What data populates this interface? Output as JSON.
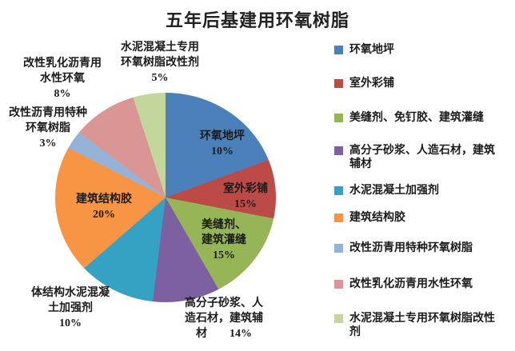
{
  "title": "五年后基建用环氧树脂",
  "chart_data": {
    "type": "pie",
    "title": "五年后基建用环氧树脂",
    "unit": "%",
    "legend_position": "right",
    "categories": [
      "环氧地坪",
      "室外彩铺",
      "美缝剂、免钉胶、建筑灌缝",
      "高分子砂浆、人造石材，建筑辅材",
      "水泥混凝土加强剂",
      "建筑结构胶",
      "改性沥青用特种环氧树脂",
      "改性乳化沥青用水性环氧",
      "水泥混凝土专用环氧树脂改性剂"
    ],
    "values": [
      10,
      15,
      15,
      14,
      10,
      20,
      3,
      8,
      5
    ],
    "colors": [
      "#4C80BB",
      "#BC4B47",
      "#96B556",
      "#7D60A0",
      "#35A2C3",
      "#F79545",
      "#95B3D7",
      "#D99694",
      "#C3D69B"
    ],
    "visual_boundary_angles_deg": [
      0,
      70,
      101,
      150,
      187,
      229,
      297,
      307,
      342,
      360
    ],
    "start_angle": "12 o'clock, clockwise"
  },
  "slice_labels": {
    "epoxy_floor": {
      "lines": [
        "环氧地坪",
        "10%"
      ]
    },
    "outdoor": {
      "lines": [
        "室外彩铺",
        "15%"
      ]
    },
    "sealant": {
      "lines": [
        "美缝剂、",
        "建筑灌缝",
        "15%"
      ]
    },
    "structural": {
      "lines": [
        "建筑结构胶",
        "20%"
      ]
    },
    "cement_top": {
      "lines": [
        "水泥混凝土专用",
        "环氧树脂改性剂",
        "5%"
      ]
    },
    "emulsified": {
      "lines": [
        "改性乳化沥青用",
        "水性环氧",
        "8%"
      ]
    },
    "special": {
      "lines": [
        "改性沥青用特种",
        "环氧树脂",
        "3%"
      ]
    },
    "reinforcer": {
      "lines": [
        "体结构水泥混凝",
        "土加强剂",
        "10%"
      ]
    },
    "polymer": {
      "lines": [
        "高分子砂浆、人",
        "造石材，建筑辅",
        "材　　14%"
      ]
    }
  },
  "legend": {
    "items": [
      {
        "label": "环氧地坪"
      },
      {
        "label": "室外彩铺"
      },
      {
        "label": "美缝剂、免钉胶、建筑灌缝"
      },
      {
        "label": "高分子砂浆、人造石材，建筑辅材"
      },
      {
        "label": "水泥混凝土加强剂"
      },
      {
        "label": "建筑结构胶"
      },
      {
        "label": "改性沥青用特种环氧树脂"
      },
      {
        "label": "改性乳化沥青用水性环氧"
      },
      {
        "label": "水泥混凝土专用环氧树脂改性剂"
      }
    ]
  }
}
